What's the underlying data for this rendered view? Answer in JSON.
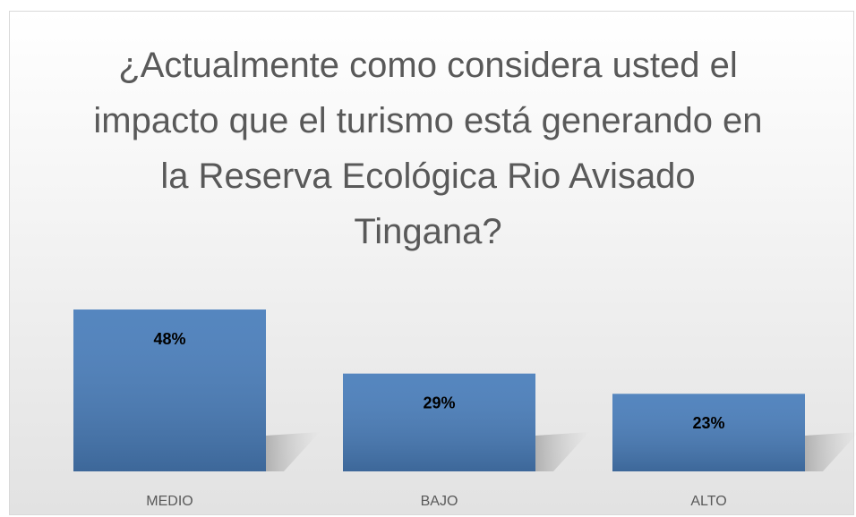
{
  "chart_data": {
    "type": "bar",
    "title": "¿Actualmente como considera usted el impacto que el turismo está generando en la Reserva Ecológica Rio Avisado Tingana?",
    "categories": [
      "MEDIO",
      "BAJO",
      "ALTO"
    ],
    "values": [
      48,
      29,
      23
    ],
    "value_labels": [
      "48%",
      "29%",
      "23%"
    ],
    "color": "#4a7ebb"
  }
}
